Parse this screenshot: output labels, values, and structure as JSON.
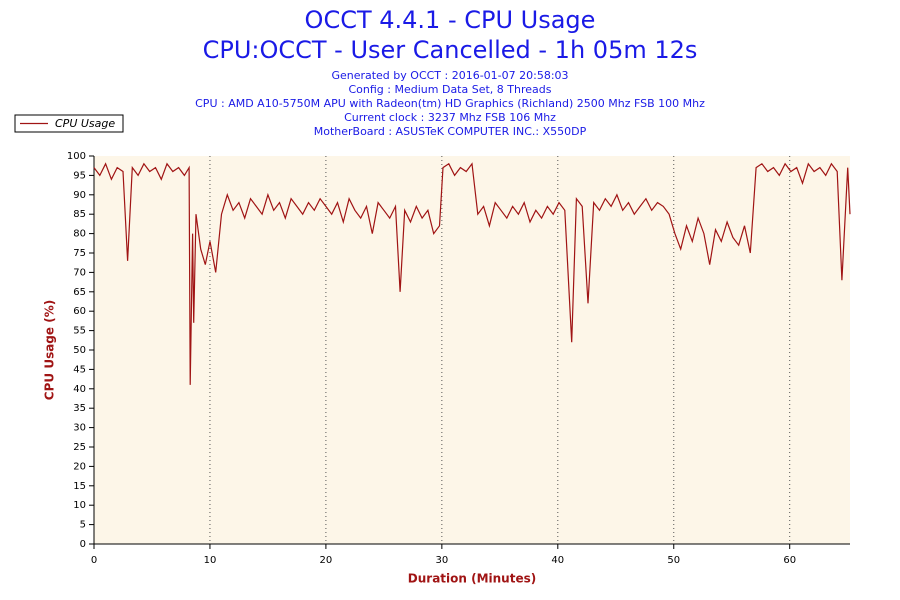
{
  "chart_data": {
    "type": "line",
    "title": "OCCT 4.4.1 - CPU Usage",
    "subtitle": "CPU:OCCT - User Cancelled - 1h 05m 12s",
    "info": [
      "Generated by OCCT : 2016-01-07 20:58:03",
      "Config : Medium Data Set, 8 Threads",
      "CPU : AMD A10-5750M APU with Radeon(tm) HD Graphics (Richland) 2500 Mhz FSB 100 Mhz",
      "Current clock : 3237 Mhz FSB 106 Mhz",
      "MotherBoard : ASUSTeK COMPUTER INC.: X550DP"
    ],
    "xlabel": "Duration (Minutes)",
    "ylabel": "CPU Usage (%)",
    "legend": "top-left",
    "grid": true,
    "xlim": [
      0,
      65.2
    ],
    "ylim": [
      0,
      100
    ],
    "xticks": [
      0,
      10,
      20,
      30,
      40,
      50,
      60
    ],
    "yticks": [
      0,
      5,
      10,
      15,
      20,
      25,
      30,
      35,
      40,
      45,
      50,
      55,
      60,
      65,
      70,
      75,
      80,
      85,
      90,
      95,
      100
    ],
    "x": [
      0,
      0.5,
      1,
      1.5,
      2,
      2.5,
      2.9,
      3.3,
      3.8,
      4.3,
      4.8,
      5.3,
      5.8,
      6.3,
      6.8,
      7.3,
      7.8,
      8.2,
      8.3,
      8.5,
      8.6,
      8.8,
      9.2,
      9.6,
      10,
      10.5,
      11,
      11.5,
      12,
      12.5,
      13,
      13.5,
      14,
      14.5,
      15,
      15.5,
      16,
      16.5,
      17,
      17.5,
      18,
      18.5,
      19,
      19.5,
      20,
      20.5,
      21,
      21.5,
      22,
      22.5,
      23,
      23.5,
      24,
      24.5,
      25,
      25.5,
      26,
      26.4,
      26.8,
      27.3,
      27.8,
      28.3,
      28.8,
      29.3,
      29.8,
      30.1,
      30.6,
      31.1,
      31.6,
      32.1,
      32.6,
      33.1,
      33.6,
      34.1,
      34.6,
      35.1,
      35.6,
      36.1,
      36.6,
      37.1,
      37.6,
      38.1,
      38.6,
      39.1,
      39.6,
      40.1,
      40.6,
      41.2,
      41.6,
      42.1,
      42.6,
      43.1,
      43.6,
      44.1,
      44.6,
      45.1,
      45.6,
      46.1,
      46.6,
      47.1,
      47.6,
      48.1,
      48.6,
      49.1,
      49.6,
      50.1,
      50.6,
      51.1,
      51.6,
      52.1,
      52.6,
      53.1,
      53.6,
      54.1,
      54.6,
      55.1,
      55.6,
      56.1,
      56.6,
      57.1,
      57.6,
      58.1,
      58.6,
      59.1,
      59.6,
      60.1,
      60.6,
      61.1,
      61.6,
      62.1,
      62.6,
      63.1,
      63.6,
      64.1,
      64.5,
      65,
      65.2
    ],
    "series": [
      {
        "name": "CPU Usage",
        "color": "#a01414",
        "values": [
          97,
          95,
          98,
          94,
          97,
          96,
          73,
          97,
          95,
          98,
          96,
          97,
          94,
          98,
          96,
          97,
          95,
          97,
          41,
          80,
          57,
          85,
          76,
          72,
          78,
          70,
          85,
          90,
          86,
          88,
          84,
          89,
          87,
          85,
          90,
          86,
          88,
          84,
          89,
          87,
          85,
          88,
          86,
          89,
          87,
          85,
          88,
          83,
          89,
          86,
          84,
          87,
          80,
          88,
          86,
          84,
          87,
          65,
          86,
          83,
          87,
          84,
          86,
          80,
          82,
          97,
          98,
          95,
          97,
          96,
          98,
          85,
          87,
          82,
          88,
          86,
          84,
          87,
          85,
          88,
          83,
          86,
          84,
          87,
          85,
          88,
          86,
          52,
          89,
          87,
          62,
          88,
          86,
          89,
          87,
          90,
          86,
          88,
          85,
          87,
          89,
          86,
          88,
          87,
          85,
          80,
          76,
          82,
          78,
          84,
          80,
          72,
          81,
          78,
          83,
          79,
          77,
          82,
          75,
          97,
          98,
          96,
          97,
          95,
          98,
          96,
          97,
          93,
          98,
          96,
          97,
          95,
          98,
          96,
          68,
          97,
          85
        ]
      }
    ]
  }
}
